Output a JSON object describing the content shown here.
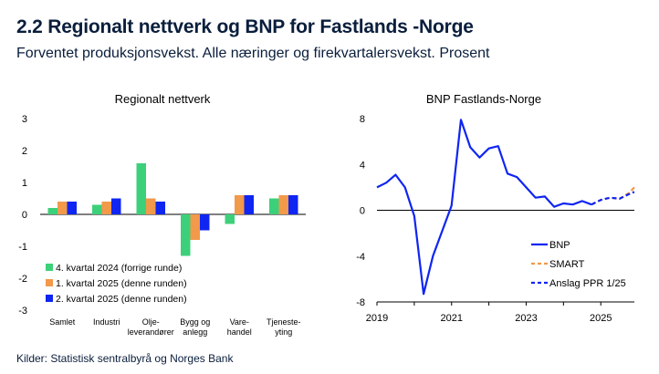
{
  "figure": {
    "title": "2.2 Regionalt nettverk og BNP for Fastlands -Norge",
    "subtitle": "Forventet produksjonsvekst. Alle næringer og firekvartalersvekst. Prosent",
    "source": "Kilder: Statistisk sentralbyrå og Norges Bank"
  },
  "colors": {
    "green": "#3dd07a",
    "orange": "#f2994a",
    "blue": "#0f25f2",
    "navy": "#0a1e3c"
  },
  "chart_data": [
    {
      "type": "bar",
      "title": "Regionalt nettverk",
      "categories": [
        [
          "Samlet"
        ],
        [
          "Industri"
        ],
        [
          "Olje-",
          "leverandører"
        ],
        [
          "Bygg og",
          "anlegg"
        ],
        [
          "Vare-",
          "handel"
        ],
        [
          "Tjeneste-",
          "yting"
        ]
      ],
      "series": [
        {
          "name": "4. kvartal 2024 (forrige runde)",
          "color": "#3dd07a",
          "values": [
            0.2,
            0.3,
            1.6,
            -1.3,
            -0.3,
            0.5
          ]
        },
        {
          "name": "1. kvartal 2025 (denne runden)",
          "color": "#f2994a",
          "values": [
            0.4,
            0.4,
            0.5,
            -0.8,
            0.6,
            0.6
          ]
        },
        {
          "name": "2. kvartal 2025 (denne runden)",
          "color": "#0f25f2",
          "values": [
            0.4,
            0.5,
            0.4,
            -0.5,
            0.6,
            0.6
          ]
        }
      ],
      "ylim": [
        -3,
        3
      ],
      "yticks": [
        3,
        2,
        1,
        0,
        -1,
        -2,
        -3
      ],
      "legend_position": "bottom-left"
    },
    {
      "type": "line",
      "title": "BNP Fastlands-Norge",
      "xlim": [
        2019.0,
        2025.9
      ],
      "xticks": [
        2019,
        2021,
        2023,
        2025
      ],
      "ylim": [
        -8,
        8
      ],
      "yticks": [
        8,
        4,
        0,
        -4,
        -8
      ],
      "series": [
        {
          "name": "BNP",
          "color": "#0f25f2",
          "dash": "solid",
          "x": [
            2019.0,
            2019.25,
            2019.5,
            2019.75,
            2020.0,
            2020.25,
            2020.5,
            2020.75,
            2021.0,
            2021.25,
            2021.5,
            2021.75,
            2022.0,
            2022.25,
            2022.5,
            2022.75,
            2023.0,
            2023.25,
            2023.5,
            2023.75,
            2024.0,
            2024.25,
            2024.5,
            2024.75
          ],
          "y": [
            2.0,
            2.4,
            3.1,
            2.0,
            -0.5,
            -7.3,
            -4.0,
            -1.8,
            0.4,
            7.9,
            5.5,
            4.6,
            5.4,
            5.6,
            3.2,
            2.9,
            2.0,
            1.1,
            1.2,
            0.3,
            0.6,
            0.5,
            0.8,
            0.5
          ]
        },
        {
          "name": "SMART",
          "color": "#f2994a",
          "dash": "dashed",
          "x": [
            2024.75,
            2025.0,
            2025.25,
            2025.5,
            2025.75,
            2025.9
          ],
          "y": [
            0.5,
            0.9,
            1.1,
            1.0,
            1.5,
            2.0
          ]
        },
        {
          "name": "Anslag PPR 1/25",
          "color": "#0f25f2",
          "dash": "dashed",
          "x": [
            2024.75,
            2025.0,
            2025.25,
            2025.5,
            2025.75,
            2025.9
          ],
          "y": [
            0.5,
            0.9,
            1.1,
            1.0,
            1.4,
            1.6
          ]
        }
      ],
      "legend_position": "bottom-right"
    }
  ]
}
